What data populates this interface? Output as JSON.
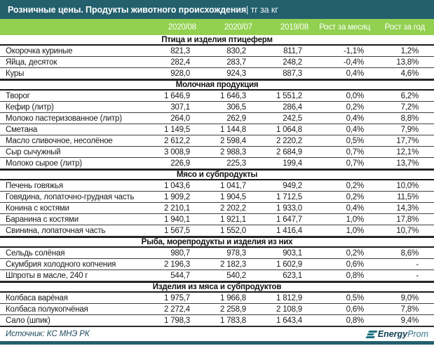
{
  "title_bar": {
    "title": "Розничные цены. Продукты животного происхождения",
    "unit_suffix": " | тг за кг"
  },
  "footer": {
    "source": "Источник: КС МНЭ РК",
    "logo_bold": "Energy",
    "logo_light": "Prom"
  },
  "colors": {
    "title_bar_bg": "#235f6d",
    "column_header_bg": "#92d050",
    "header_text": "#ffffff",
    "body_text": "#1a1a1a",
    "source_text": "#1f4a5e",
    "logo_teal": "#1d7083",
    "bottom_bar": "#235f6d"
  },
  "chart_data": {
    "type": "table",
    "title": "Розничные цены. Продукты животного происхождения (тг за кг)",
    "columns": [
      "2020/08",
      "2020/07",
      "2019/08",
      "Рост за месяц",
      "Рост за год"
    ],
    "sections": [
      {
        "header": "Птица и изделия птицеферм",
        "rows": [
          {
            "name": "Окорочка куриные",
            "values": [
              "821,3",
              "830,2",
              "811,7",
              "-1,1%",
              "1,2%"
            ]
          },
          {
            "name": "Яйца, десяток",
            "values": [
              "282,4",
              "283,7",
              "248,2",
              "-0,4%",
              "13,8%"
            ]
          },
          {
            "name": "Куры",
            "values": [
              "928,0",
              "924,3",
              "887,3",
              "0,4%",
              "4,6%"
            ]
          }
        ]
      },
      {
        "header": "Молочная продукция",
        "rows": [
          {
            "name": "Творог",
            "values": [
              "1 646,9",
              "1 646,3",
              "1 551,2",
              "0,0%",
              "6,2%"
            ]
          },
          {
            "name": "Кефир (литр)",
            "values": [
              "307,1",
              "306,5",
              "286,4",
              "0,2%",
              "7,2%"
            ]
          },
          {
            "name": "Молоко пастеризованное (литр)",
            "values": [
              "264,0",
              "262,9",
              "242,5",
              "0,4%",
              "8,8%"
            ]
          },
          {
            "name": "Сметана",
            "values": [
              "1 149,5",
              "1 144,8",
              "1 064,8",
              "0,4%",
              "7,9%"
            ]
          },
          {
            "name": "Масло сливочное, несолёное",
            "values": [
              "2 612,2",
              "2 598,4",
              "2 220,2",
              "0,5%",
              "17,7%"
            ]
          },
          {
            "name": "Сыр сычужный",
            "values": [
              "3 008,9",
              "2 988,3",
              "2 684,9",
              "0,7%",
              "12,1%"
            ]
          },
          {
            "name": "Молоко сырое (литр)",
            "values": [
              "226,9",
              "225,3",
              "199,4",
              "0,7%",
              "13,7%"
            ]
          }
        ]
      },
      {
        "header": "Мясо и субпродукты",
        "rows": [
          {
            "name": "Печень говяжья",
            "values": [
              "1 043,6",
              "1 041,7",
              "949,2",
              "0,2%",
              "10,0%"
            ]
          },
          {
            "name": "Говядина, лопаточно-грудная часть",
            "values": [
              "1 909,2",
              "1 904,5",
              "1 712,5",
              "0,2%",
              "11,5%"
            ]
          },
          {
            "name": "Конина с костями",
            "values": [
              "2 210,1",
              "2 202,2",
              "1 933,0",
              "0,4%",
              "14,3%"
            ]
          },
          {
            "name": "Баранина с костями",
            "values": [
              "1 940,1",
              "1 921,1",
              "1 647,7",
              "1,0%",
              "17,8%"
            ]
          },
          {
            "name": "Свинина, лопаточная часть",
            "values": [
              "1 567,5",
              "1 552,0",
              "1 416,4",
              "1,0%",
              "10,7%"
            ]
          }
        ]
      },
      {
        "header": "Рыба, морепродукты и изделия из них",
        "rows": [
          {
            "name": "Сельдь солёная",
            "values": [
              "980,7",
              "978,3",
              "903,1",
              "0,2%",
              "8,6%"
            ]
          },
          {
            "name": "Скумбрия холодного копчения",
            "values": [
              "2 196,3",
              "2 182,3",
              "1 602,9",
              "0,6%",
              "-"
            ]
          },
          {
            "name": "Шпроты в масле, 240 г",
            "values": [
              "544,7",
              "540,2",
              "623,1",
              "0,8%",
              "-"
            ]
          }
        ]
      },
      {
        "header": "Изделия из мяса и субпродуктов",
        "rows": [
          {
            "name": "Колбаса варёная",
            "values": [
              "1 975,7",
              "1 966,8",
              "1 812,9",
              "0,5%",
              "9,0%"
            ]
          },
          {
            "name": "Колбаса полукопчёная",
            "values": [
              "2 272,4",
              "2 258,9",
              "2 108,9",
              "0,6%",
              "7,8%"
            ]
          },
          {
            "name": "Сало (шпик)",
            "values": [
              "1 798,3",
              "1 783,8",
              "1 643,4",
              "0,8%",
              "9,4%"
            ]
          }
        ]
      }
    ]
  }
}
